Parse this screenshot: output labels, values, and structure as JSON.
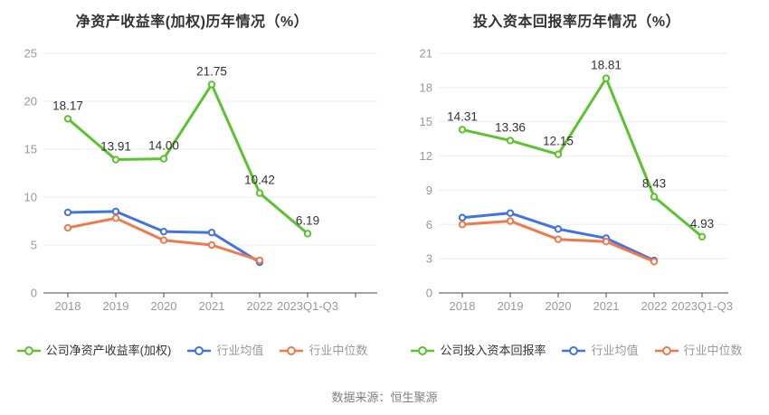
{
  "source_note": "数据来源：恒生聚源",
  "colors": {
    "company_series": "#5bc32d",
    "industry_mean_series": "#4173e2",
    "industry_median_series": "#f0794c",
    "grid_line": "#e8edf4",
    "axis_line": "#4d4d4d",
    "tick_label": "#999999",
    "data_label": "#333333",
    "legend_primary": "#333333",
    "legend_muted": "#999999",
    "background": "#ffffff"
  },
  "chart_data": [
    {
      "type": "line",
      "title": "净资产收益率(加权)历年情况（%）",
      "categories": [
        "2018",
        "2019",
        "2020",
        "2021",
        "2022",
        "2023Q1-Q3"
      ],
      "xlabel": "",
      "ylabel": "",
      "ylim": [
        0,
        25
      ],
      "yticks": [
        0,
        5,
        10,
        15,
        20,
        25
      ],
      "grid": true,
      "legend_position": "bottom",
      "series": [
        {
          "name": "公司净资产收益率(加权)",
          "color": "#5bc32d",
          "values": [
            18.17,
            13.91,
            14.0,
            21.75,
            10.42,
            6.19
          ],
          "labels": [
            "18.17",
            "13.91",
            "14.00",
            "21.75",
            "10.42",
            "6.19"
          ]
        },
        {
          "name": "行业均值",
          "color": "#4173e2",
          "values": [
            8.4,
            8.5,
            6.4,
            6.3,
            3.2,
            null
          ]
        },
        {
          "name": "行业中位数",
          "color": "#f0794c",
          "values": [
            6.8,
            7.8,
            5.5,
            5.0,
            3.4,
            null
          ]
        }
      ]
    },
    {
      "type": "line",
      "title": "投入资本回报率历年情况（%）",
      "categories": [
        "2018",
        "2019",
        "2020",
        "2021",
        "2022",
        "2023Q1-Q3"
      ],
      "xlabel": "",
      "ylabel": "",
      "ylim": [
        0,
        21
      ],
      "yticks": [
        0,
        3,
        6,
        9,
        12,
        15,
        18,
        21
      ],
      "grid": true,
      "legend_position": "bottom",
      "series": [
        {
          "name": "公司投入资本回报率",
          "color": "#5bc32d",
          "values": [
            14.31,
            13.36,
            12.15,
            18.81,
            8.43,
            4.93
          ],
          "labels": [
            "14.31",
            "13.36",
            "12.15",
            "18.81",
            "8.43",
            "4.93"
          ]
        },
        {
          "name": "行业均值",
          "color": "#4173e2",
          "values": [
            6.6,
            7.0,
            5.6,
            4.8,
            2.85,
            null
          ]
        },
        {
          "name": "行业中位数",
          "color": "#f0794c",
          "values": [
            6.0,
            6.3,
            4.7,
            4.5,
            2.75,
            null
          ]
        }
      ]
    }
  ]
}
